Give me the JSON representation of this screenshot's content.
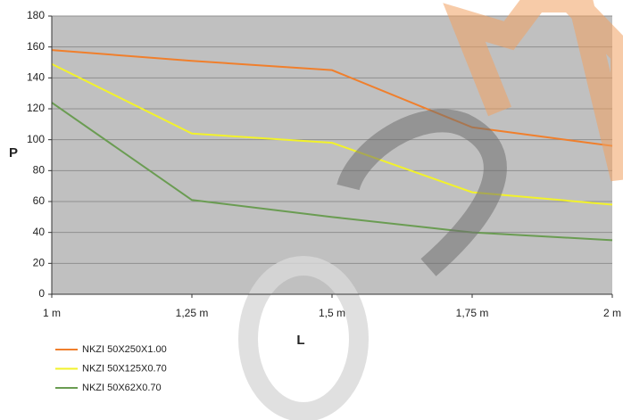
{
  "chart_data": {
    "type": "line",
    "x_label": "L",
    "y_label": "P",
    "categories": [
      "1 m",
      "1,25 m",
      "1,5 m",
      "1,75 m",
      "2 m"
    ],
    "series": [
      {
        "name": "NKZI 50X250X1.00",
        "color": "#f07f2c",
        "values": [
          158,
          151,
          145,
          108,
          96
        ]
      },
      {
        "name": "NKZI 50X125X0.70",
        "color": "#f2f22a",
        "values": [
          149,
          104,
          98,
          66,
          58
        ]
      },
      {
        "name": "NKZI 50X62X0.70",
        "color": "#6a9c52",
        "values": [
          124,
          61,
          50,
          40,
          35
        ]
      }
    ],
    "ylim": [
      0,
      180
    ],
    "yticks": [
      0,
      20,
      40,
      60,
      80,
      100,
      120,
      140,
      160,
      180
    ],
    "grid": true
  }
}
